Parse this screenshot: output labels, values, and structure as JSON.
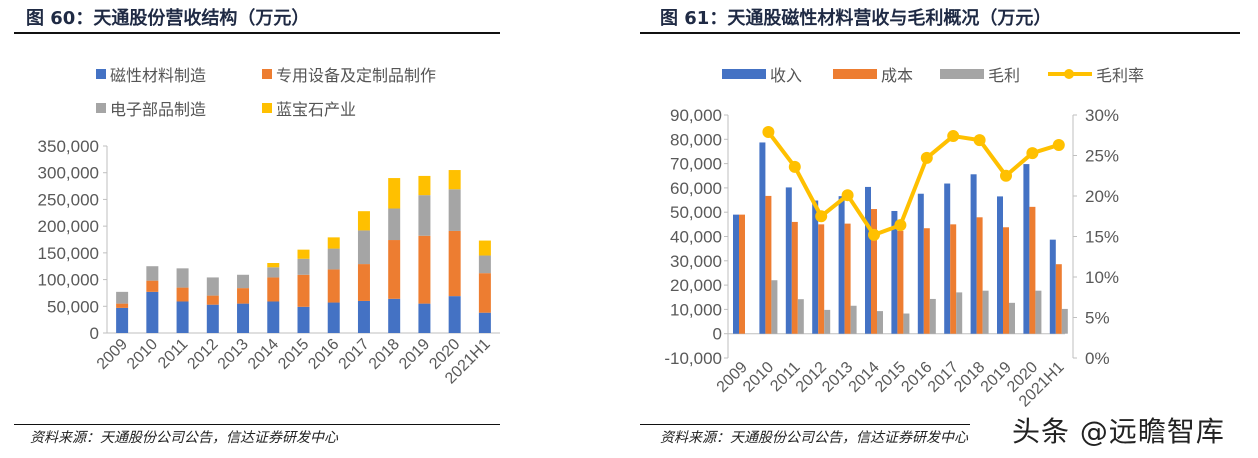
{
  "left": {
    "title": "图 60：天通股份营收结构（万元）",
    "source": "资料来源：天通股份公司公告，信达证券研发中心"
  },
  "right": {
    "title": "图 61：天通股磁性材料营收与毛利概况（万元）",
    "source": "资料来源：天通股份公司公告，信达证券研发中心"
  },
  "watermark": "头条 @远瞻智库",
  "colors": {
    "blue": "#4472C4",
    "orange": "#ED7D31",
    "gray": "#A5A5A5",
    "yellow": "#FFC000"
  },
  "chart_data": [
    {
      "type": "bar",
      "stacked": true,
      "title": "图 60：天通股份营收结构（万元）",
      "categories": [
        "2009",
        "2010",
        "2011",
        "2012",
        "2013",
        "2014",
        "2015",
        "2016",
        "2017",
        "2018",
        "2019",
        "2020",
        "2021H1"
      ],
      "ylim": [
        0,
        350000
      ],
      "yticks": [
        "0",
        "50,000",
        "100,000",
        "150,000",
        "200,000",
        "250,000",
        "300,000",
        "350,000"
      ],
      "legend_position": "top",
      "grid": false,
      "series": [
        {
          "name": "磁性材料制造",
          "color": "#4472C4",
          "values": [
            47000,
            77000,
            59000,
            53000,
            55000,
            59000,
            49000,
            57000,
            60000,
            64000,
            55000,
            69000,
            38000
          ]
        },
        {
          "name": "专用设备及定制品制作",
          "color": "#ED7D31",
          "values": [
            8000,
            21000,
            26000,
            17000,
            29000,
            45000,
            60000,
            62000,
            69000,
            110000,
            127000,
            122000,
            74000
          ]
        },
        {
          "name": "电子部品制造",
          "color": "#A5A5A5",
          "values": [
            22000,
            27000,
            36000,
            34000,
            25000,
            19000,
            30000,
            39000,
            63000,
            59000,
            76000,
            78000,
            33000
          ]
        },
        {
          "name": "蓝宝石产业",
          "color": "#FFC000",
          "values": [
            0,
            0,
            0,
            0,
            0,
            8000,
            17000,
            21000,
            36000,
            57000,
            36000,
            36000,
            28000
          ]
        }
      ]
    },
    {
      "type": "bar",
      "title": "图 61：天通股磁性材料营收与毛利概况（万元）",
      "categories": [
        "2009",
        "2010",
        "2011",
        "2012",
        "2013",
        "2014",
        "2015",
        "2016",
        "2017",
        "2018",
        "2019",
        "2020",
        "2021H1"
      ],
      "ylim": [
        -10000,
        90000
      ],
      "yticks": [
        "-10,000",
        "0",
        "10,000",
        "20,000",
        "30,000",
        "40,000",
        "50,000",
        "60,000",
        "70,000",
        "80,000",
        "90,000"
      ],
      "y2lim": [
        0,
        30
      ],
      "y2ticks": [
        "0%",
        "5%",
        "10%",
        "15%",
        "20%",
        "25%",
        "30%"
      ],
      "legend_position": "top",
      "grid": false,
      "series": [
        {
          "name": "收入",
          "type": "bar",
          "color": "#4472C4",
          "values": [
            49000,
            78700,
            60200,
            54800,
            56600,
            60400,
            50500,
            57600,
            61800,
            65600,
            56500,
            69800,
            38700
          ]
        },
        {
          "name": "成本",
          "type": "bar",
          "color": "#ED7D31",
          "values": [
            49000,
            56700,
            46000,
            45000,
            45300,
            51300,
            42300,
            43400,
            45000,
            47900,
            43800,
            52200,
            28600
          ]
        },
        {
          "name": "毛利",
          "type": "bar",
          "color": "#A5A5A5",
          "values": [
            0,
            22000,
            14200,
            9800,
            11500,
            9300,
            8300,
            14300,
            17000,
            17700,
            12700,
            17700,
            10200
          ]
        },
        {
          "name": "毛利率",
          "type": "line",
          "axis": "right",
          "unit": "%",
          "color": "#FFC000",
          "values": [
            null,
            27.9,
            23.6,
            17.5,
            20.1,
            15.2,
            16.4,
            24.7,
            27.4,
            26.9,
            22.5,
            25.3,
            26.3
          ]
        }
      ]
    }
  ]
}
